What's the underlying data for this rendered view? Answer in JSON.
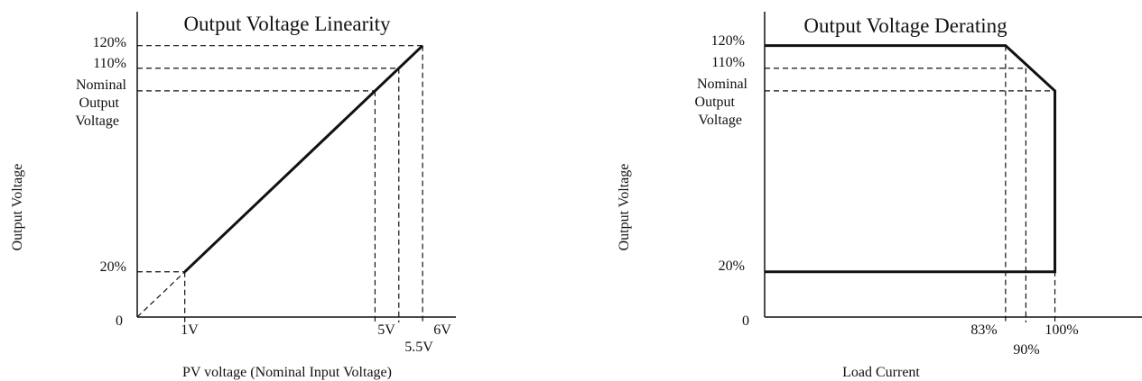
{
  "chart_data": [
    {
      "type": "line",
      "title": "Output Voltage Linearity",
      "xlabel": "PV voltage (Nominal Input Voltage)",
      "ylabel": "Output Voltage",
      "origin_label": "0",
      "x_ticks": [
        "1V",
        "5V",
        "5.5V",
        "6V"
      ],
      "y_ticks": [
        "20%",
        "110%",
        "120%"
      ],
      "y_tick_nominal": [
        "Nominal",
        "Output",
        "Voltage"
      ],
      "series": [
        {
          "style": "solid",
          "x": [
            1,
            6
          ],
          "y": [
            20,
            120
          ]
        },
        {
          "style": "dashed",
          "x": [
            0,
            1
          ],
          "y": [
            0,
            20
          ]
        }
      ],
      "guides": [
        {
          "x": 1,
          "y": 20
        },
        {
          "x": 5,
          "y": 100
        },
        {
          "x": 5.5,
          "y": 110
        },
        {
          "x": 6,
          "y": 120
        }
      ],
      "xlim": [
        0,
        6.7
      ],
      "ylim": [
        0,
        135
      ]
    },
    {
      "type": "line",
      "title": "Output Voltage Derating",
      "xlabel": "Load Current",
      "ylabel": "Output Voltage",
      "origin_label": "0",
      "x_ticks": [
        "83%",
        "90%",
        "100%"
      ],
      "y_ticks": [
        "20%",
        "110%",
        "120%"
      ],
      "y_tick_nominal": [
        "Nominal",
        "Output",
        "Voltage"
      ],
      "series": [
        {
          "style": "solid",
          "x": [
            0,
            83,
            100,
            100,
            0
          ],
          "y": [
            120,
            120,
            100,
            20,
            20
          ]
        }
      ],
      "guides": [
        {
          "x": 83,
          "y": 120
        },
        {
          "x": 90,
          "y": 110
        },
        {
          "x": 100,
          "y": 100
        }
      ],
      "xlim": [
        0,
        130
      ],
      "ylim": [
        0,
        135
      ]
    }
  ]
}
